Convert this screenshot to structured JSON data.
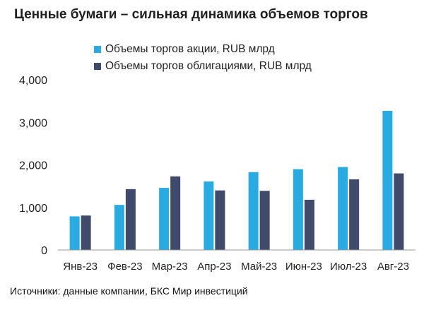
{
  "title": "Ценные бумаги – сильная динамика объемов торгов",
  "source": "Источники: данные компании, БКС Мир инвестиций",
  "colors": {
    "stocks": "#29ABE2",
    "bonds": "#404A6B",
    "axis": "#999999"
  },
  "chart_data": {
    "type": "bar",
    "categories": [
      "Янв-23",
      "Фев-23",
      "Мар-23",
      "Апр-23",
      "Май-23",
      "Июн-23",
      "Июл-23",
      "Авг-23"
    ],
    "series": [
      {
        "name": "Объемы торгов акции, RUB млрд",
        "values": [
          790,
          1060,
          1460,
          1610,
          1830,
          1900,
          1950,
          3270
        ]
      },
      {
        "name": "Объемы торгов облигациями, RUB млрд",
        "values": [
          810,
          1430,
          1730,
          1400,
          1390,
          1180,
          1660,
          1800
        ]
      }
    ],
    "y_ticks": [
      "0",
      "1,000",
      "2,000",
      "3,000",
      "4,000"
    ],
    "ylim": [
      0,
      4000
    ],
    "legend_position": "top",
    "grid": false
  }
}
